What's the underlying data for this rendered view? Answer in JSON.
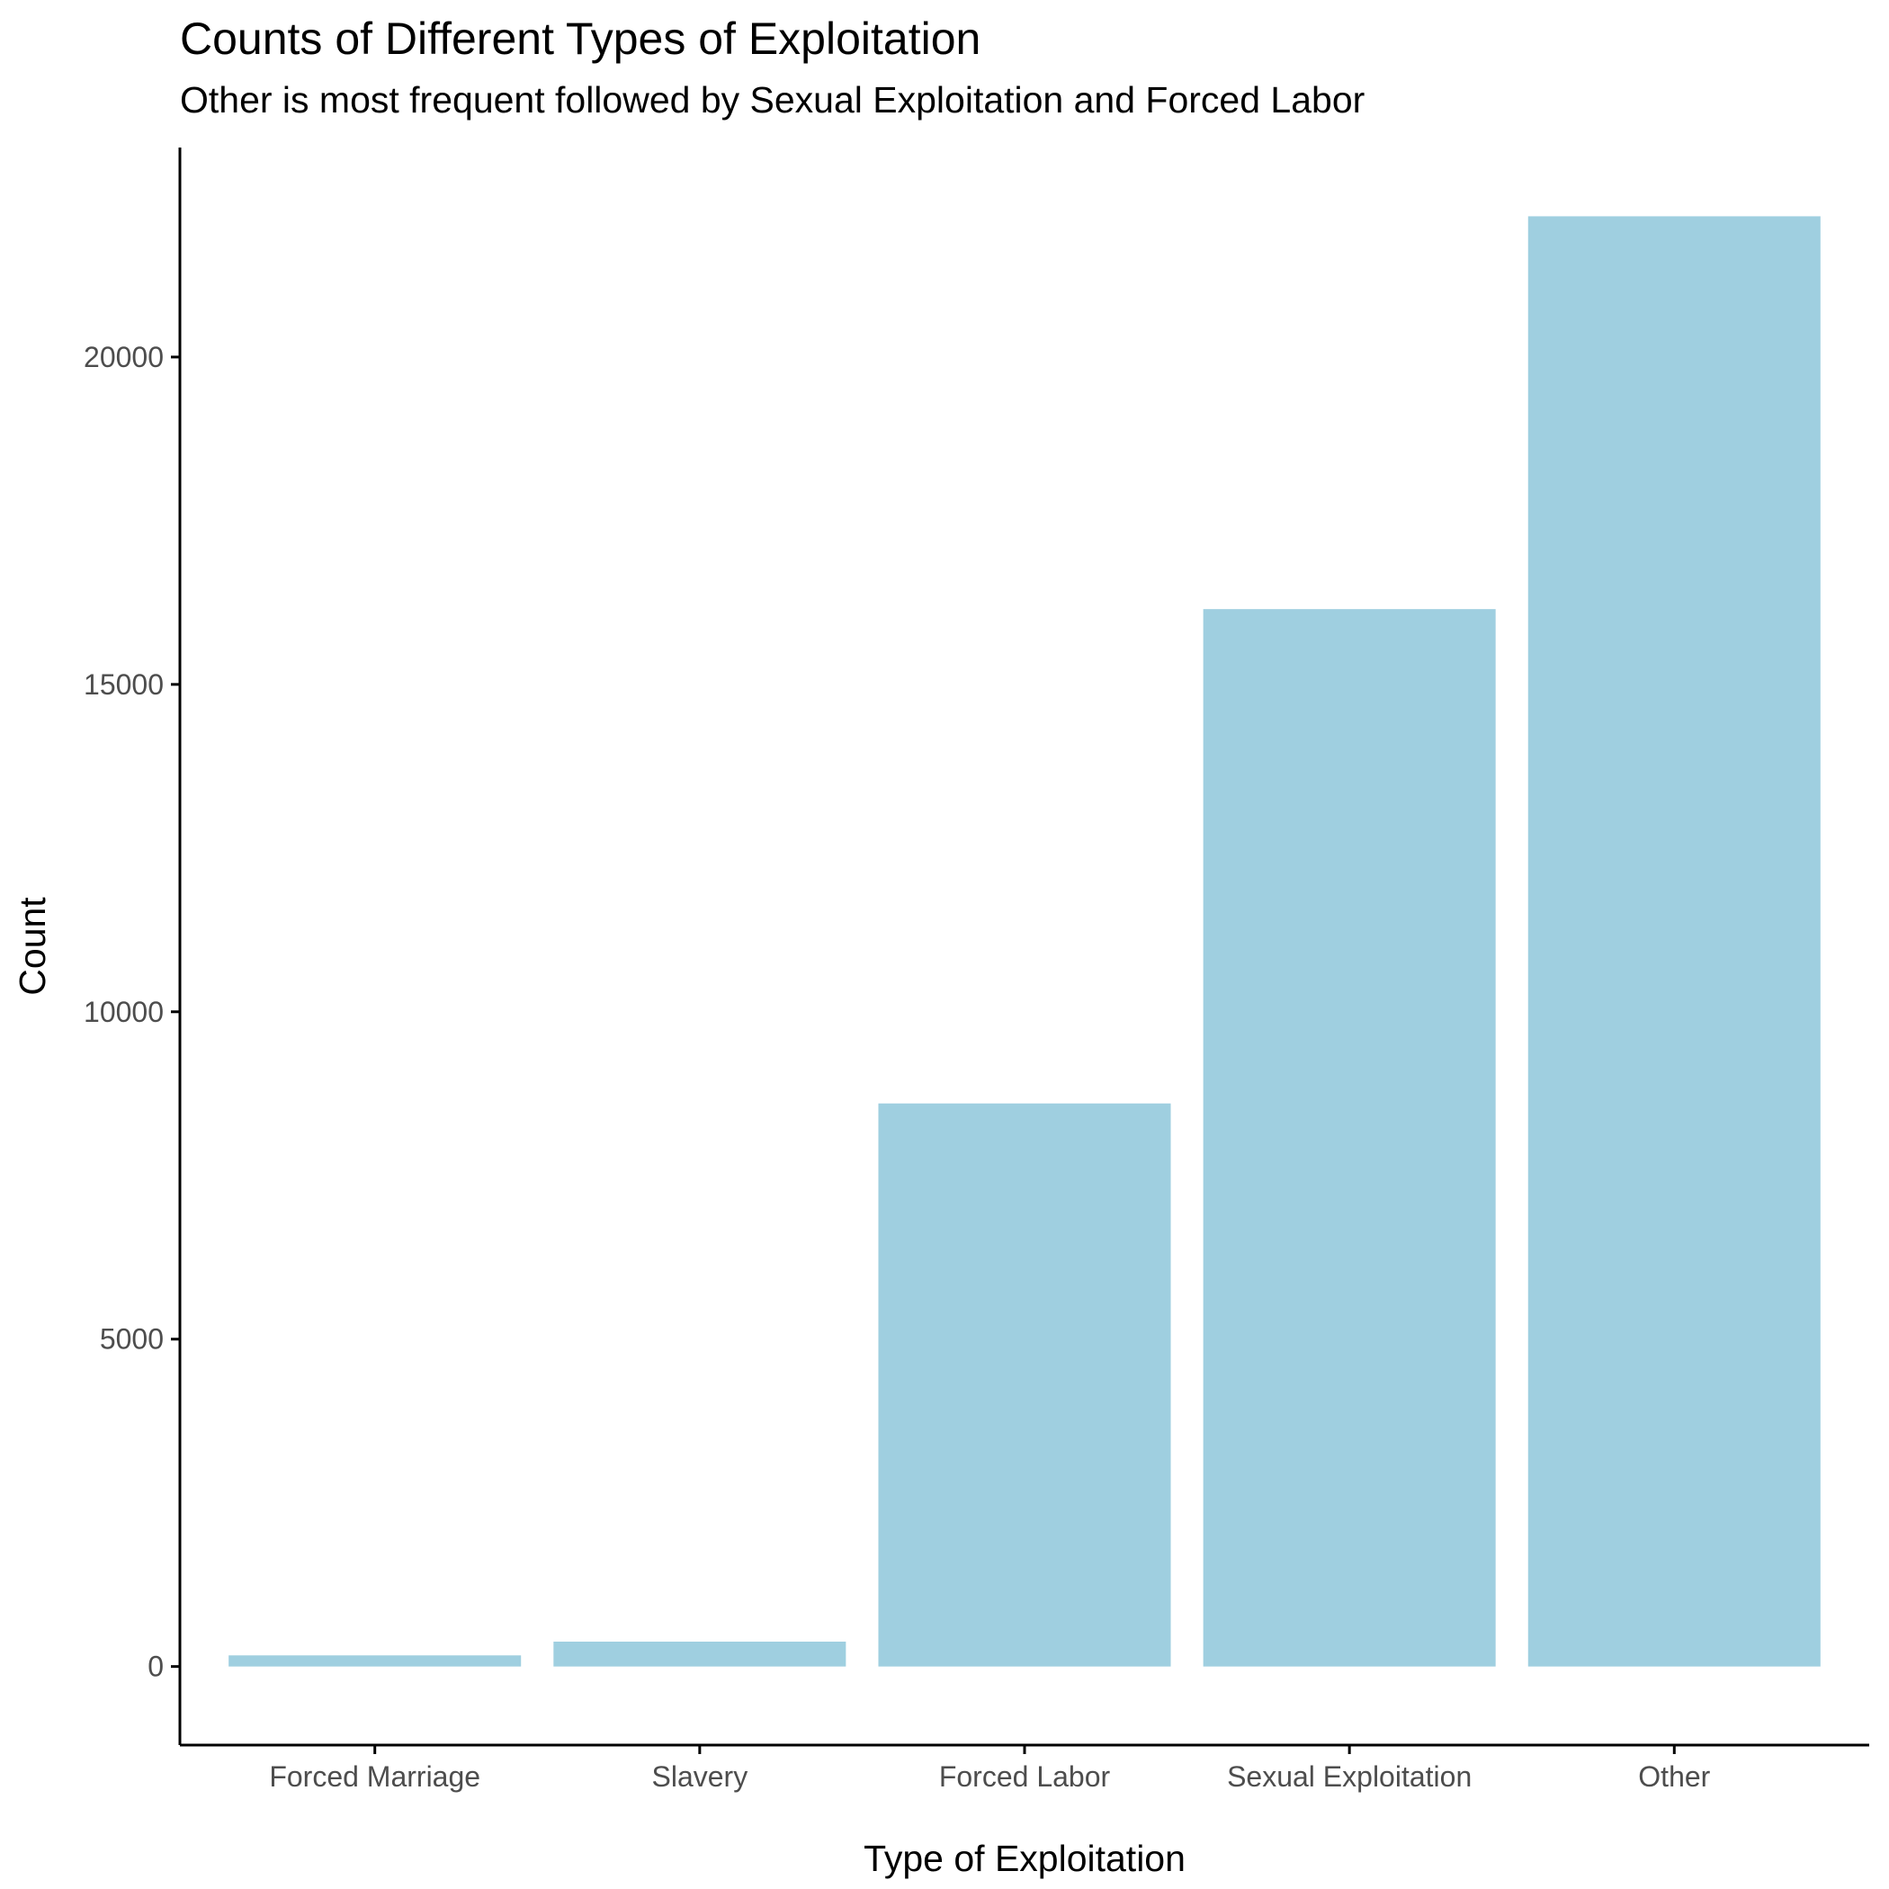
{
  "chart_data": {
    "type": "bar",
    "title": "Counts of Different Types of Exploitation",
    "subtitle": "Other is most frequent followed by Sexual Exploitation and Forced Labor",
    "xlabel": "Type of Exploitation",
    "ylabel": "Count",
    "categories": [
      "Forced Marriage",
      "Slavery",
      "Forced Labor",
      "Sexual Exploitation",
      "Other"
    ],
    "values": [
      170,
      380,
      8600,
      16150,
      22150
    ],
    "yticks": [
      0,
      5000,
      10000,
      15000,
      20000
    ],
    "ylim": [
      -1200,
      23200
    ],
    "bar_color": "#9fcfe0",
    "grid": false,
    "legend": "none"
  }
}
